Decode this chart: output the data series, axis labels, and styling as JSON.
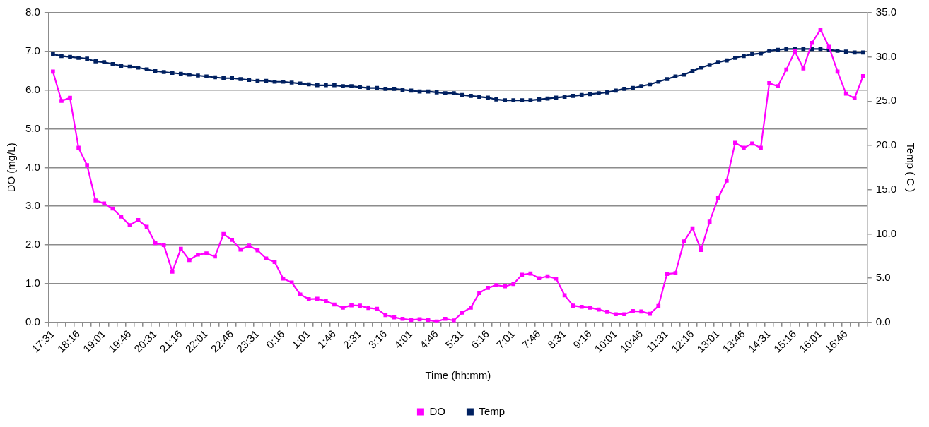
{
  "chart_data": {
    "type": "line",
    "xlabel": "Time (hh:mm)",
    "ylabel": "DO (mg/L)",
    "y2label": "Temp ( C )",
    "categories": [
      "17:31",
      null,
      null,
      "18:16",
      null,
      null,
      "19:01",
      null,
      null,
      "19:46",
      null,
      null,
      "20:31",
      null,
      null,
      "21:16",
      null,
      null,
      "22:01",
      null,
      null,
      "22:46",
      null,
      null,
      "23:31",
      null,
      null,
      "0:16",
      null,
      null,
      "1:01",
      null,
      null,
      "1:46",
      null,
      null,
      "2:31",
      null,
      null,
      "3:16",
      null,
      null,
      "4:01",
      null,
      null,
      "4:46",
      null,
      null,
      "5:31",
      null,
      null,
      "6:16",
      null,
      null,
      "7:01",
      null,
      null,
      "7:46",
      null,
      null,
      "8:31",
      null,
      null,
      "9:16",
      null,
      null,
      "10:01",
      null,
      null,
      "10:46",
      null,
      null,
      "11:31",
      null,
      null,
      "12:16",
      null,
      null,
      "13:01",
      null,
      null,
      "13:46",
      null,
      null,
      "14:31",
      null,
      null,
      "15:16",
      null,
      null,
      "16:01",
      null,
      null,
      "16:46",
      null,
      null
    ],
    "series": [
      {
        "name": "DO",
        "color": "#ff00ff",
        "values": [
          6.48,
          5.72,
          5.8,
          4.51,
          4.06,
          3.15,
          3.07,
          2.94,
          2.73,
          2.51,
          2.64,
          2.47,
          2.05,
          2.0,
          1.31,
          1.9,
          1.61,
          1.75,
          1.78,
          1.7,
          2.28,
          2.13,
          1.88,
          1.98,
          1.86,
          1.65,
          1.56,
          1.13,
          1.03,
          0.72,
          0.6,
          0.61,
          0.55,
          0.46,
          0.38,
          0.44,
          0.43,
          0.37,
          0.35,
          0.19,
          0.13,
          0.09,
          0.06,
          0.08,
          0.06,
          0.02,
          0.09,
          0.05,
          0.25,
          0.38,
          0.76,
          0.89,
          0.96,
          0.93,
          0.99,
          1.23,
          1.26,
          1.14,
          1.19,
          1.13,
          0.7,
          0.43,
          0.4,
          0.38,
          0.33,
          0.27,
          0.21,
          0.21,
          0.29,
          0.28,
          0.22,
          0.42,
          1.25,
          1.27,
          2.09,
          2.43,
          1.87,
          2.6,
          3.21,
          3.66,
          4.64,
          4.51,
          4.62,
          4.51,
          6.18,
          6.1,
          6.53,
          7.0,
          6.56,
          7.22,
          7.56,
          7.12,
          6.48,
          5.91,
          5.79,
          6.36
        ]
      },
      {
        "name": "Temp",
        "color": "#002060",
        "axis": "y2",
        "values": [
          30.3,
          30.1,
          30.0,
          29.9,
          29.8,
          29.5,
          29.4,
          29.2,
          29.0,
          28.9,
          28.8,
          28.6,
          28.4,
          28.3,
          28.2,
          28.1,
          28.0,
          27.9,
          27.8,
          27.7,
          27.6,
          27.6,
          27.5,
          27.4,
          27.3,
          27.3,
          27.2,
          27.2,
          27.1,
          27.0,
          26.9,
          26.8,
          26.8,
          26.8,
          26.7,
          26.7,
          26.6,
          26.5,
          26.5,
          26.4,
          26.4,
          26.3,
          26.2,
          26.1,
          26.1,
          26.0,
          25.9,
          25.9,
          25.7,
          25.6,
          25.5,
          25.4,
          25.2,
          25.1,
          25.1,
          25.1,
          25.1,
          25.2,
          25.3,
          25.4,
          25.5,
          25.6,
          25.7,
          25.8,
          25.9,
          26.0,
          26.2,
          26.4,
          26.5,
          26.7,
          26.9,
          27.2,
          27.5,
          27.8,
          28.0,
          28.4,
          28.8,
          29.1,
          29.4,
          29.6,
          29.9,
          30.1,
          30.3,
          30.4,
          30.7,
          30.8,
          30.9,
          30.9,
          30.9,
          30.9,
          30.9,
          30.8,
          30.7,
          30.6,
          30.5,
          30.5
        ]
      }
    ],
    "ylim": [
      0,
      8
    ],
    "yticks": [
      {
        "value": 0,
        "label": "0.0"
      },
      {
        "value": 1,
        "label": "1.0"
      },
      {
        "value": 2,
        "label": "2.0"
      },
      {
        "value": 3,
        "label": "3.0"
      },
      {
        "value": 4,
        "label": "4.0"
      },
      {
        "value": 5,
        "label": "5.0"
      },
      {
        "value": 6,
        "label": "6.0"
      },
      {
        "value": 7,
        "label": "7.0"
      },
      {
        "value": 8,
        "label": "8.0"
      }
    ],
    "y2lim": [
      0,
      35
    ],
    "y2ticks": [
      {
        "value": 0,
        "label": "0.0"
      },
      {
        "value": 5,
        "label": "5.0"
      },
      {
        "value": 10,
        "label": "10.0"
      },
      {
        "value": 15,
        "label": "15.0"
      },
      {
        "value": 20,
        "label": "20.0"
      },
      {
        "value": 25,
        "label": "25.0"
      },
      {
        "value": 30,
        "label": "30.0"
      },
      {
        "value": 35,
        "label": "35.0"
      }
    ],
    "grid": "y",
    "legend": "bottom",
    "marker": "square",
    "line_style": "solid"
  }
}
